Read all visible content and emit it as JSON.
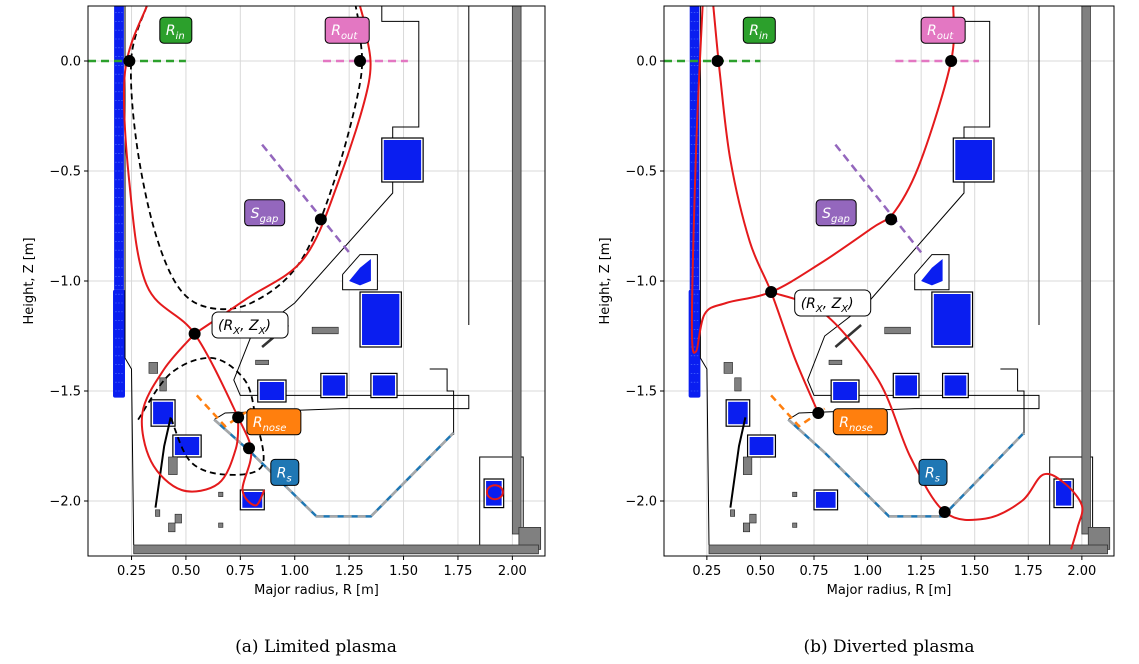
{
  "chart_data": [
    {
      "type": "scatter",
      "caption": "(a) Limited plasma",
      "xlabel": "Major radius, R [m]",
      "ylabel": "Height, Z [m]",
      "xlim": [
        0.05,
        2.15
      ],
      "ylim": [
        -2.25,
        0.25
      ],
      "xticks": [
        0.25,
        0.5,
        0.75,
        1.0,
        1.25,
        1.5,
        1.75,
        2.0
      ],
      "xtick_labels": [
        "0.25",
        "0.50",
        "0.75",
        "1.00",
        "1.25",
        "1.50",
        "1.75",
        "2.00"
      ],
      "yticks": [
        0.0,
        -0.5,
        -1.0,
        -1.5,
        -2.0
      ],
      "ytick_labels": [
        "0.0",
        "−0.5",
        "−1.0",
        "−1.5",
        "−2.0"
      ],
      "grid": true,
      "points": [
        {
          "name": "R_in",
          "R": 0.24,
          "Z": 0.0
        },
        {
          "name": "R_out",
          "R": 1.3,
          "Z": 0.0
        },
        {
          "name": "S_gap",
          "R": 1.12,
          "Z": -0.72
        },
        {
          "name": "X_point",
          "R": 0.54,
          "Z": -1.24
        },
        {
          "name": "R_nose",
          "R": 0.74,
          "Z": -1.62
        },
        {
          "name": "R_s",
          "R": 0.79,
          "Z": -1.76
        }
      ],
      "labels": {
        "r_in": {
          "base": "R",
          "sub": "in",
          "color": "#2ca02c"
        },
        "r_out": {
          "base": "R",
          "sub": "out",
          "color": "#e377c2"
        },
        "s_gap": {
          "base": "S",
          "sub": "gap",
          "color": "#9467bd"
        },
        "x_point": {
          "text": "(R",
          "sub1": "X",
          "mid": ", Z",
          "sub2": "X",
          "end": ")"
        },
        "r_nose": {
          "base": "R",
          "sub": "nose",
          "color": "#ff7f0e"
        },
        "r_s": {
          "base": "R",
          "sub": "s",
          "color": "#1f77b4"
        }
      }
    },
    {
      "type": "scatter",
      "caption": "(b) Diverted plasma",
      "xlabel": "Major radius, R [m]",
      "ylabel": "Height, Z [m]",
      "xlim": [
        0.05,
        2.15
      ],
      "ylim": [
        -2.25,
        0.25
      ],
      "xticks": [
        0.25,
        0.5,
        0.75,
        1.0,
        1.25,
        1.5,
        1.75,
        2.0
      ],
      "xtick_labels": [
        "0.25",
        "0.50",
        "0.75",
        "1.00",
        "1.25",
        "1.50",
        "1.75",
        "2.00"
      ],
      "yticks": [
        0.0,
        -0.5,
        -1.0,
        -1.5,
        -2.0
      ],
      "ytick_labels": [
        "0.0",
        "−0.5",
        "−1.0",
        "−1.5",
        "−2.0"
      ],
      "grid": true,
      "points": [
        {
          "name": "R_in",
          "R": 0.3,
          "Z": 0.0
        },
        {
          "name": "R_out",
          "R": 1.39,
          "Z": 0.0
        },
        {
          "name": "S_gap",
          "R": 1.11,
          "Z": -0.72
        },
        {
          "name": "X_point",
          "R": 0.55,
          "Z": -1.05
        },
        {
          "name": "R_nose",
          "R": 0.77,
          "Z": -1.6
        },
        {
          "name": "R_s",
          "R": 1.36,
          "Z": -2.05
        }
      ],
      "labels": {
        "r_in": {
          "base": "R",
          "sub": "in",
          "color": "#2ca02c"
        },
        "r_out": {
          "base": "R",
          "sub": "out",
          "color": "#e377c2"
        },
        "s_gap": {
          "base": "S",
          "sub": "gap",
          "color": "#9467bd"
        },
        "x_point": {
          "text": "(R",
          "sub1": "X",
          "mid": ", Z",
          "sub2": "X",
          "end": ")"
        },
        "r_nose": {
          "base": "R",
          "sub": "nose",
          "color": "#ff7f0e"
        },
        "r_s": {
          "base": "R",
          "sub": "s",
          "color": "#1f77b4"
        }
      }
    }
  ],
  "colors": {
    "coil_blue": "#0a1ef0",
    "boundary_red": "#e41a1c",
    "passive_grey": "#808080"
  }
}
